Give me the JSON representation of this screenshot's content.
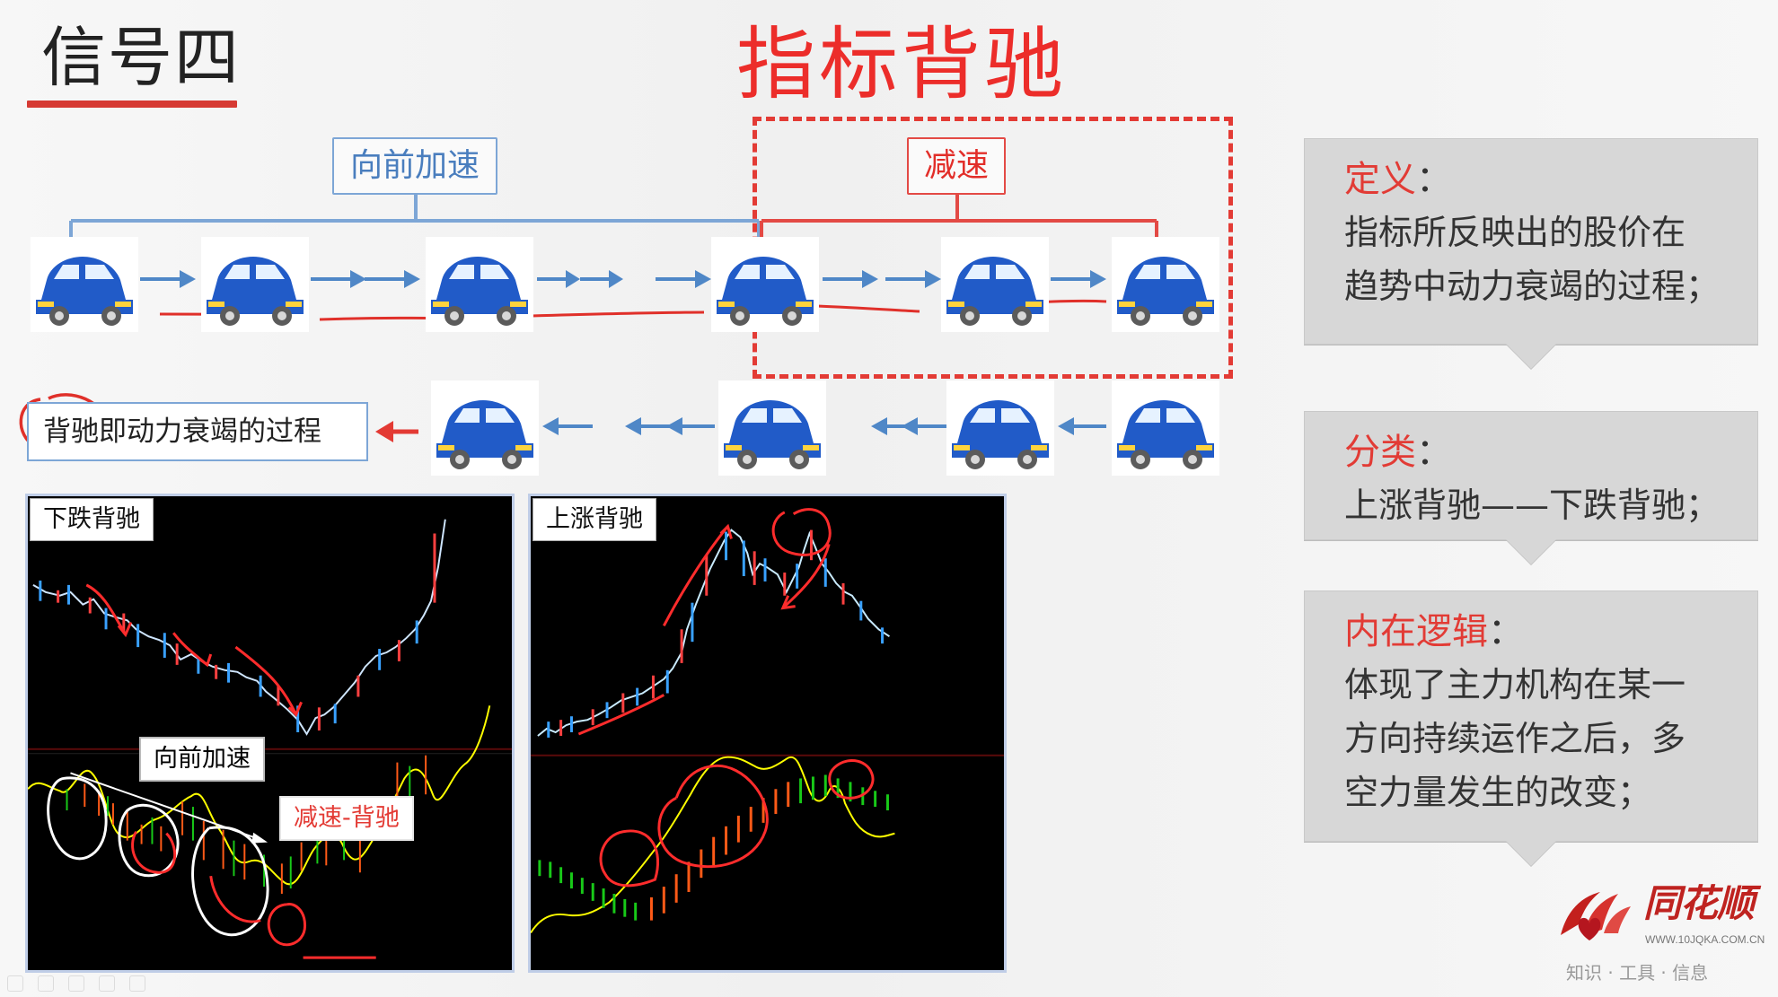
{
  "title": "信号四",
  "heading": "指标背驰",
  "diagram": {
    "forward_label": "向前加速",
    "slowdown_label": "减速",
    "note_label": "背驰即动力衰竭的过程"
  },
  "charts": [
    {
      "label": "下跌背驰",
      "overlay_forward": "向前加速",
      "overlay_divergence": "减速-背驰"
    },
    {
      "label": "上涨背驰"
    }
  ],
  "sidebar": {
    "cards": [
      {
        "title": "定义",
        "colon": "：",
        "body": "指标所反映出的股价在\n趋势中动力衰竭的过程；"
      },
      {
        "title": "分类",
        "colon": "：",
        "body": "上涨背驰——下跌背驰；"
      },
      {
        "title": "内在逻辑",
        "colon": "：",
        "body": "体现了主力机构在某一\n方向持续运作之后，多\n空力量发生的改变；"
      }
    ]
  },
  "brand": {
    "name": "同花顺",
    "url": "WWW.10JQKA.COM.CN",
    "tagline": "知识 · 工具 · 信息"
  },
  "colors": {
    "accent_red": "#ec2d2a",
    "accent_blue": "#4a7ebe",
    "card_gray": "#d7d7d7"
  }
}
